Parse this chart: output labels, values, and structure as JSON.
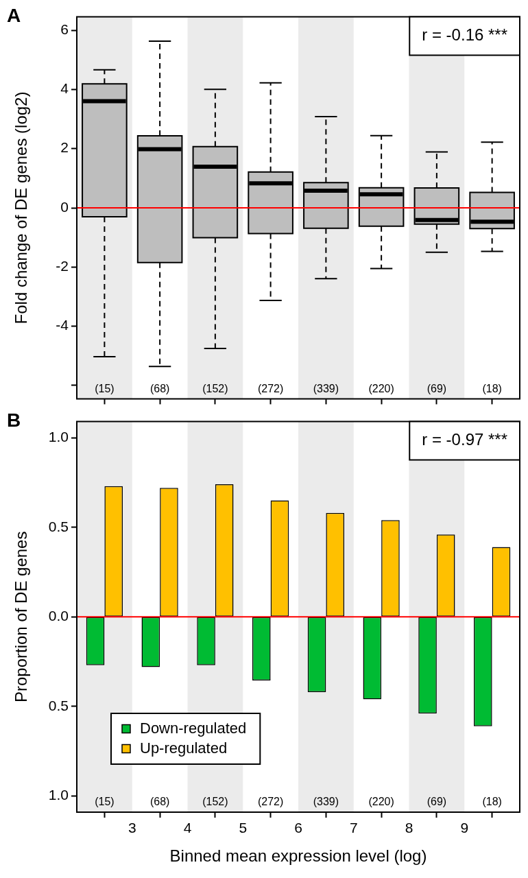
{
  "chart_data": [
    {
      "type": "box",
      "title": "A",
      "ylabel": "Fold change of DE genes (log2)",
      "x": [
        2.5,
        3.5,
        4.5,
        5.5,
        6.5,
        7.5,
        8.5,
        9.5
      ],
      "xlim": [
        2,
        10
      ],
      "xticks": [
        3,
        4,
        5,
        6,
        7,
        8,
        9
      ],
      "tick_labels": "y",
      "ylim": [
        -6.45,
        6.45
      ],
      "yticks": [
        {
          "value": -6,
          "label": null
        },
        -4,
        -2,
        0,
        2,
        4,
        6
      ],
      "color": "#bebebe",
      "boxes": [
        {
          "low": -5.03,
          "q1": -0.3,
          "median": 3.6,
          "q3": 4.19,
          "high": 4.66
        },
        {
          "low": -5.36,
          "q1": -1.85,
          "median": 1.98,
          "q3": 2.43,
          "high": 5.63
        },
        {
          "low": -4.75,
          "q1": -1.01,
          "median": 1.39,
          "q3": 2.07,
          "high": 4.0
        },
        {
          "low": -3.13,
          "q1": -0.87,
          "median": 0.83,
          "q3": 1.21,
          "high": 4.22
        },
        {
          "low": -2.39,
          "q1": -0.69,
          "median": 0.58,
          "q3": 0.85,
          "high": 3.08
        },
        {
          "low": -2.05,
          "q1": -0.62,
          "median": 0.46,
          "q3": 0.68,
          "high": 2.44
        },
        {
          "low": -1.5,
          "q1": -0.55,
          "median": -0.41,
          "q3": 0.67,
          "high": 1.89
        },
        {
          "low": -1.47,
          "q1": -0.7,
          "median": -0.47,
          "q3": 0.52,
          "high": 2.22
        }
      ],
      "ref_lines": [
        {
          "axis": "y",
          "value": 0,
          "color": "#ff0000"
        }
      ],
      "bands": [
        {
          "axis": "x",
          "from": 2,
          "to": 3,
          "color": "#ebebeb"
        },
        {
          "axis": "x",
          "from": 4,
          "to": 5,
          "color": "#ebebeb"
        },
        {
          "axis": "x",
          "from": 6,
          "to": 7,
          "color": "#ebebeb"
        },
        {
          "axis": "x",
          "from": 8,
          "to": 9,
          "color": "#ebebeb"
        }
      ],
      "annotations": [
        "r = -0.16 ***",
        "(15)",
        "(68)",
        "(152)",
        "(272)",
        "(339)",
        "(220)",
        "(69)",
        "(18)"
      ]
    },
    {
      "type": "bar",
      "title": "B",
      "ylabel": "Proportion of DE genes",
      "xlabel": "Binned mean expression level (log)",
      "x": [
        2.5,
        3.5,
        4.5,
        5.5,
        6.5,
        7.5,
        8.5,
        9.5
      ],
      "xlim": [
        2,
        10
      ],
      "xticks": [
        3,
        4,
        5,
        6,
        7,
        8,
        9
      ],
      "ylim": [
        -1.09,
        1.09
      ],
      "yticks": [
        {
          "value": -1,
          "label": "1.0"
        },
        {
          "value": -0.5,
          "label": "0.5"
        },
        {
          "value": 0,
          "label": "0.0"
        },
        {
          "value": 0.5,
          "label": "0.5"
        },
        {
          "value": 1,
          "label": "1.0"
        }
      ],
      "legend": "bottom left",
      "series": [
        {
          "name": "Down-regulated",
          "color": "#00bb33",
          "values": [
            -0.27,
            -0.28,
            -0.27,
            -0.355,
            -0.42,
            -0.46,
            -0.54,
            -0.61
          ]
        },
        {
          "name": "Up-regulated",
          "color": "#ffc000",
          "values": [
            0.73,
            0.72,
            0.74,
            0.65,
            0.58,
            0.54,
            0.46,
            0.39
          ]
        }
      ],
      "ref_lines": [
        {
          "axis": "y",
          "value": 0,
          "color": "#ff0000"
        }
      ],
      "bands": [
        {
          "axis": "x",
          "from": 2,
          "to": 3,
          "color": "#ebebeb"
        },
        {
          "axis": "x",
          "from": 4,
          "to": 5,
          "color": "#ebebeb"
        },
        {
          "axis": "x",
          "from": 6,
          "to": 7,
          "color": "#ebebeb"
        },
        {
          "axis": "x",
          "from": 8,
          "to": 9,
          "color": "#ebebeb"
        }
      ],
      "annotations": [
        "r = -0.97 ***",
        "(15)",
        "(68)",
        "(152)",
        "(272)",
        "(339)",
        "(220)",
        "(69)",
        "(18)"
      ]
    }
  ]
}
